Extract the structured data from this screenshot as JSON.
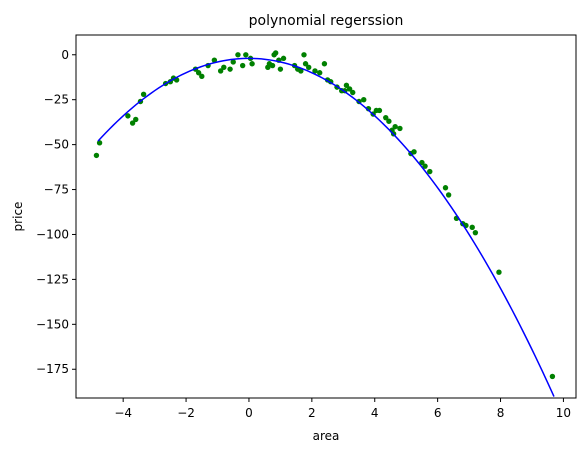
{
  "chart_data": {
    "type": "scatter",
    "title": "polynomial regerssion",
    "xlabel": "area",
    "ylabel": "price",
    "xlim": [
      -5.5,
      10.4
    ],
    "ylim": [
      -191,
      11
    ],
    "xticks": [
      -4,
      -2,
      0,
      2,
      4,
      6,
      8,
      10
    ],
    "yticks": [
      0,
      -25,
      -50,
      -75,
      -100,
      -125,
      -150,
      -175
    ],
    "grid": false,
    "colors": {
      "points": "#008000",
      "curve": "#0000ff"
    },
    "fit": {
      "coefficients": [
        -2,
        0.0,
        -2.0
      ],
      "x_range": [
        -4.8,
        9.7
      ]
    },
    "series": [
      {
        "type": "scatter",
        "x": [
          -4.85,
          -4.75,
          -3.85,
          -3.7,
          -3.6,
          -3.45,
          -3.35,
          -2.65,
          -2.5,
          -2.4,
          -2.3,
          -1.7,
          -1.6,
          -1.5,
          -1.3,
          -1.1,
          -0.9,
          -0.8,
          -0.6,
          -0.5,
          -0.35,
          -0.2,
          -0.1,
          0.05,
          0.1,
          0.6,
          0.65,
          0.75,
          0.8,
          0.85,
          0.95,
          1.0,
          1.1,
          1.45,
          1.55,
          1.65,
          1.75,
          1.8,
          1.9,
          2.1,
          2.25,
          2.4,
          2.5,
          2.6,
          2.8,
          2.95,
          3.05,
          3.1,
          3.2,
          3.3,
          3.5,
          3.65,
          3.8,
          3.95,
          4.05,
          4.15,
          4.35,
          4.45,
          4.55,
          4.6,
          4.65,
          4.8,
          5.15,
          5.25,
          5.5,
          5.6,
          5.75,
          6.25,
          6.35,
          6.6,
          6.8,
          6.9,
          7.1,
          7.2,
          7.95,
          9.65
        ],
        "y": [
          -56,
          -49,
          -34,
          -38,
          -36,
          -26,
          -22,
          -16,
          -15,
          -13,
          -14,
          -8,
          -10,
          -12,
          -6,
          -3,
          -9,
          -7,
          -8,
          -4,
          0,
          -6,
          0,
          -2,
          -5,
          -7,
          -5,
          -6,
          0,
          1,
          -3,
          -8,
          -2,
          -6,
          -8,
          -9,
          0,
          -5,
          -7,
          -9,
          -10,
          -5,
          -14,
          -15,
          -18,
          -20,
          -20,
          -17,
          -19,
          -21,
          -26,
          -25,
          -30,
          -33,
          -31,
          -31,
          -35,
          -37,
          -42,
          -44,
          -40,
          -41,
          -55,
          -54,
          -60,
          -62,
          -65,
          -74,
          -78,
          -91,
          -94,
          -95,
          -96,
          -99,
          -121,
          -179
        ]
      }
    ]
  }
}
